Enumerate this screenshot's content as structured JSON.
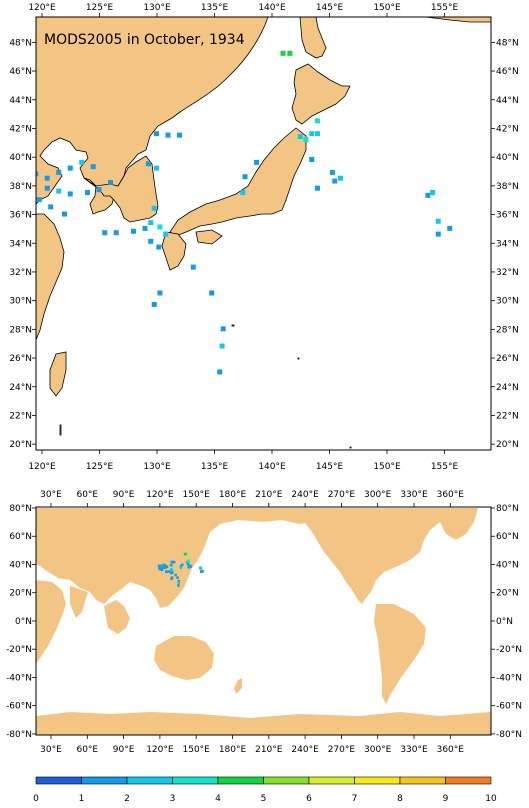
{
  "title": "MODS2005 in October, 1934",
  "colors": {
    "land": "#f2c584",
    "ocean": "#ffffff",
    "frame": "#000000"
  },
  "regional_map": {
    "lon_labels": [
      "120°E",
      "125°E",
      "130°E",
      "135°E",
      "140°E",
      "145°E",
      "150°E",
      "155°E"
    ],
    "lat_labels": [
      "48°N",
      "46°N",
      "44°N",
      "42°N",
      "40°N",
      "38°N",
      "36°N",
      "34°N",
      "32°N",
      "30°N",
      "28°N",
      "26°N",
      "24°N",
      "22°N",
      "20°N"
    ]
  },
  "global_map": {
    "lon_labels": [
      "30°E",
      "60°E",
      "90°E",
      "120°E",
      "150°E",
      "180°E",
      "210°E",
      "240°E",
      "270°E",
      "300°E",
      "330°E",
      "360°E"
    ],
    "lat_labels": [
      "80°N",
      "60°N",
      "40°N",
      "20°N",
      "0°N",
      "-20°N",
      "-40°N",
      "-60°N",
      "-80°N"
    ]
  },
  "colorbar": {
    "labels": [
      "0",
      "1",
      "2",
      "3",
      "4",
      "5",
      "6",
      "7",
      "8",
      "9",
      "10"
    ],
    "colors": [
      "#1c5fd6",
      "#159ae6",
      "#12c8ea",
      "#10e3c6",
      "#12d63e",
      "#7fe12a",
      "#d9ee2a",
      "#f7ea1a",
      "#f6c21c",
      "#ef7a1f"
    ]
  },
  "chart_data": {
    "type": "heatmap",
    "title": "MODS2005 in October, 1934",
    "value_range": [
      0,
      10
    ],
    "cells": [
      {
        "lon": 119.5,
        "lat": 38.8,
        "value": 1.5
      },
      {
        "lon": 120.5,
        "lat": 38.5,
        "value": 1.3
      },
      {
        "lon": 121.5,
        "lat": 38.9,
        "value": 1.6
      },
      {
        "lon": 122.5,
        "lat": 39.2,
        "value": 1.2
      },
      {
        "lon": 123.5,
        "lat": 39.6,
        "value": 2.1
      },
      {
        "lon": 124.5,
        "lat": 39.3,
        "value": 1.4
      },
      {
        "lon": 120.5,
        "lat": 37.8,
        "value": 1.8
      },
      {
        "lon": 121.5,
        "lat": 37.6,
        "value": 2.3
      },
      {
        "lon": 122.5,
        "lat": 37.4,
        "value": 1.1
      },
      {
        "lon": 119.8,
        "lat": 37.0,
        "value": 1.2
      },
      {
        "lon": 120.8,
        "lat": 36.5,
        "value": 1.5
      },
      {
        "lon": 122.0,
        "lat": 36.0,
        "value": 1.0
      },
      {
        "lon": 124.0,
        "lat": 37.5,
        "value": 1.4
      },
      {
        "lon": 125.0,
        "lat": 37.7,
        "value": 1.3
      },
      {
        "lon": 126.0,
        "lat": 38.2,
        "value": 1.6
      },
      {
        "lon": 125.5,
        "lat": 34.7,
        "value": 1.2
      },
      {
        "lon": 126.5,
        "lat": 34.7,
        "value": 1.1
      },
      {
        "lon": 128.0,
        "lat": 34.8,
        "value": 1.0
      },
      {
        "lon": 129.0,
        "lat": 35.0,
        "value": 1.5
      },
      {
        "lon": 129.5,
        "lat": 35.4,
        "value": 2.6
      },
      {
        "lon": 130.3,
        "lat": 35.1,
        "value": 3.0
      },
      {
        "lon": 130.8,
        "lat": 34.6,
        "value": 2.8
      },
      {
        "lon": 129.5,
        "lat": 34.1,
        "value": 1.4
      },
      {
        "lon": 130.2,
        "lat": 33.7,
        "value": 1.2
      },
      {
        "lon": 129.8,
        "lat": 36.4,
        "value": 2.2
      },
      {
        "lon": 129.3,
        "lat": 39.5,
        "value": 1.3
      },
      {
        "lon": 130.0,
        "lat": 39.2,
        "value": 2.2
      },
      {
        "lon": 130.0,
        "lat": 41.6,
        "value": 1.3
      },
      {
        "lon": 131.0,
        "lat": 41.5,
        "value": 1.1
      },
      {
        "lon": 132.0,
        "lat": 41.5,
        "value": 1.1
      },
      {
        "lon": 133.2,
        "lat": 32.3,
        "value": 1.2
      },
      {
        "lon": 130.3,
        "lat": 30.5,
        "value": 1.3
      },
      {
        "lon": 129.8,
        "lat": 29.7,
        "value": 1.7
      },
      {
        "lon": 134.8,
        "lat": 30.5,
        "value": 1.1
      },
      {
        "lon": 135.8,
        "lat": 28.0,
        "value": 1.4
      },
      {
        "lon": 135.7,
        "lat": 26.8,
        "value": 2.5
      },
      {
        "lon": 135.5,
        "lat": 25.0,
        "value": 1.2
      },
      {
        "lon": 137.7,
        "lat": 38.6,
        "value": 1.2
      },
      {
        "lon": 137.5,
        "lat": 37.5,
        "value": 2.0
      },
      {
        "lon": 138.7,
        "lat": 39.6,
        "value": 1.3
      },
      {
        "lon": 141.0,
        "lat": 47.2,
        "value": 4.6
      },
      {
        "lon": 141.6,
        "lat": 47.2,
        "value": 4.8
      },
      {
        "lon": 142.5,
        "lat": 41.4,
        "value": 2.7
      },
      {
        "lon": 143.0,
        "lat": 41.2,
        "value": 3.0
      },
      {
        "lon": 143.5,
        "lat": 41.6,
        "value": 2.4
      },
      {
        "lon": 144.0,
        "lat": 41.6,
        "value": 2.8
      },
      {
        "lon": 144.0,
        "lat": 42.5,
        "value": 3.5
      },
      {
        "lon": 143.5,
        "lat": 39.8,
        "value": 1.6
      },
      {
        "lon": 144.0,
        "lat": 37.8,
        "value": 1.3
      },
      {
        "lon": 145.3,
        "lat": 38.9,
        "value": 1.7
      },
      {
        "lon": 146.0,
        "lat": 38.5,
        "value": 2.6
      },
      {
        "lon": 145.5,
        "lat": 38.3,
        "value": 1.2
      },
      {
        "lon": 153.6,
        "lat": 37.3,
        "value": 1.4
      },
      {
        "lon": 154.0,
        "lat": 37.5,
        "value": 2.2
      },
      {
        "lon": 154.5,
        "lat": 35.5,
        "value": 2.6
      },
      {
        "lon": 154.5,
        "lat": 34.6,
        "value": 1.1
      },
      {
        "lon": 155.5,
        "lat": 35.0,
        "value": 1.2
      }
    ]
  }
}
